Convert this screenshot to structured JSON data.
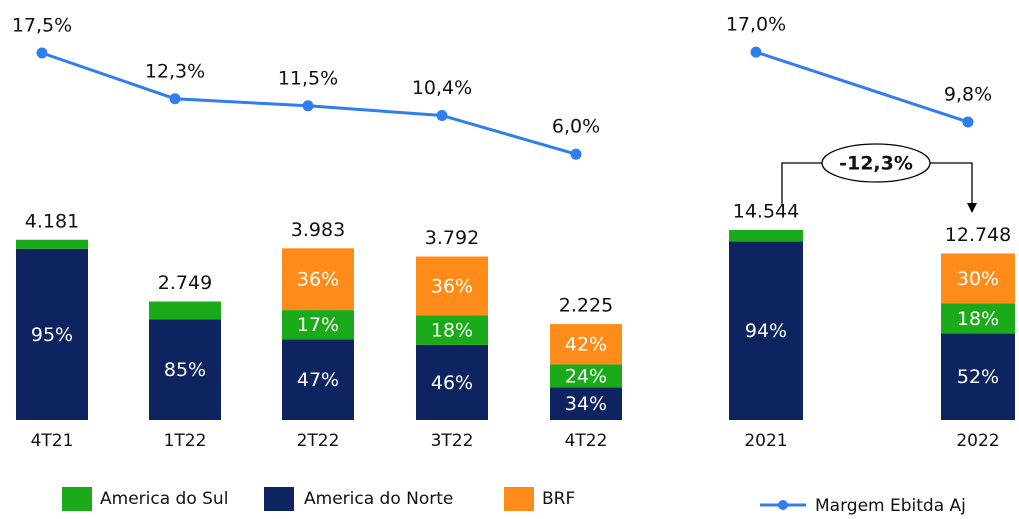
{
  "chart_data": [
    {
      "type": "bar",
      "categories": [
        "4T21",
        "1T22",
        "2T22",
        "3T22",
        "4T22"
      ],
      "series": [
        {
          "name": "America do Norte",
          "color": "#0d2460",
          "values": [
            95,
            85,
            47,
            46,
            34
          ],
          "value_labels": [
            "95%",
            "85%",
            "47%",
            "46%",
            "34%"
          ]
        },
        {
          "name": "America do Sul",
          "color": "#1aaa1a",
          "values": [
            5,
            15,
            17,
            18,
            24
          ],
          "value_labels": [
            null,
            null,
            "17%",
            "18%",
            "24%"
          ]
        },
        {
          "name": "BRF",
          "color": "#ff8c1a",
          "values": [
            null,
            null,
            36,
            36,
            42
          ],
          "value_labels": [
            null,
            null,
            "36%",
            "36%",
            "42%"
          ]
        }
      ],
      "totals": [
        4181,
        2749,
        3983,
        3792,
        2225
      ],
      "total_labels": [
        "4.181",
        "2.749",
        "3.983",
        "3.792",
        "2.225"
      ],
      "ylim": [
        0,
        4500
      ],
      "line": {
        "color": "#2f7df0",
        "values": [
          17.5,
          12.3,
          11.5,
          10.4,
          6.0
        ],
        "value_labels": [
          "17,5%",
          "12,3%",
          "11,5%",
          "10,4%",
          "6,0%"
        ]
      },
      "y2lim": [
        0,
        20
      ]
    },
    {
      "type": "bar",
      "categories": [
        "2021",
        "2022"
      ],
      "series": [
        {
          "color": "#0d2460",
          "values": [
            94,
            52
          ],
          "value_labels": [
            "94%",
            "52%"
          ]
        },
        {
          "color": "#1aaa1a",
          "values": [
            6,
            18
          ],
          "value_labels": [
            null,
            "18%"
          ]
        },
        {
          "color": "#ff8c1a",
          "values": [
            null,
            30
          ],
          "value_labels": [
            null,
            "30%"
          ]
        }
      ],
      "totals": [
        14544,
        12748
      ],
      "total_labels": [
        "14.544",
        "12.748"
      ],
      "ylim": [
        0,
        15000
      ],
      "line": {
        "name": "Margem Ebitda Aj",
        "color": "#2f7df0",
        "values": [
          17.0,
          9.8
        ],
        "value_labels": [
          "17,0%",
          "9,8%"
        ]
      },
      "y2lim": [
        0,
        20
      ],
      "annotation": "-12,3%"
    }
  ]
}
